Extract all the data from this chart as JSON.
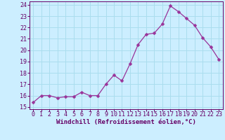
{
  "x": [
    0,
    1,
    2,
    3,
    4,
    5,
    6,
    7,
    8,
    9,
    10,
    11,
    12,
    13,
    14,
    15,
    16,
    17,
    18,
    19,
    20,
    21,
    22,
    23
  ],
  "y": [
    15.4,
    16.0,
    16.0,
    15.8,
    15.9,
    15.9,
    16.3,
    16.0,
    16.0,
    17.0,
    17.8,
    17.3,
    18.8,
    20.5,
    21.4,
    21.5,
    22.3,
    23.9,
    23.4,
    22.8,
    22.2,
    21.1,
    20.3,
    19.2
  ],
  "line_color": "#993399",
  "marker": "D",
  "marker_size": 2.5,
  "bg_color": "#cceeff",
  "grid_color": "#aaddee",
  "xlabel": "Windchill (Refroidissement éolien,°C)",
  "ylabel": "",
  "ylim": [
    14.8,
    24.3
  ],
  "xlim": [
    -0.5,
    23.5
  ],
  "yticks": [
    15,
    16,
    17,
    18,
    19,
    20,
    21,
    22,
    23,
    24
  ],
  "xticks": [
    0,
    1,
    2,
    3,
    4,
    5,
    6,
    7,
    8,
    9,
    10,
    11,
    12,
    13,
    14,
    15,
    16,
    17,
    18,
    19,
    20,
    21,
    22,
    23
  ],
  "xlabel_color": "#660066",
  "tick_color": "#660066",
  "label_fontsize": 6.5,
  "tick_fontsize": 6.0
}
